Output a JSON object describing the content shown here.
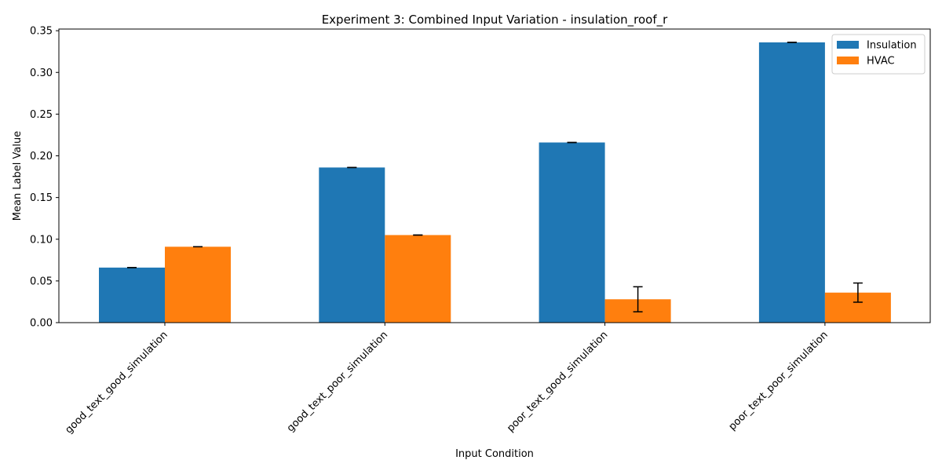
{
  "chart_data": {
    "type": "bar",
    "title": "Experiment 3: Combined Input Variation - insulation_roof_r",
    "xlabel": "Input Condition",
    "ylabel": "Mean Label Value",
    "categories": [
      "good_text_good_simulation",
      "good_text_poor_simulation",
      "poor_text_good_simulation",
      "poor_text_poor_simulation"
    ],
    "series": [
      {
        "name": "Insulation",
        "color": "#1f77b4",
        "values": [
          0.066,
          0.186,
          0.216,
          0.336
        ],
        "errors": [
          0.0,
          0.0,
          0.0,
          0.0
        ]
      },
      {
        "name": "HVAC",
        "color": "#ff7f0e",
        "values": [
          0.091,
          0.105,
          0.028,
          0.036
        ],
        "errors": [
          0.0,
          0.0,
          0.015,
          0.0115
        ]
      }
    ],
    "ylim": [
      0,
      0.352
    ],
    "yticks": [
      "0.00",
      "0.05",
      "0.10",
      "0.15",
      "0.20",
      "0.25",
      "0.30",
      "0.35"
    ],
    "legend_position": "top-right",
    "grid": false
  }
}
